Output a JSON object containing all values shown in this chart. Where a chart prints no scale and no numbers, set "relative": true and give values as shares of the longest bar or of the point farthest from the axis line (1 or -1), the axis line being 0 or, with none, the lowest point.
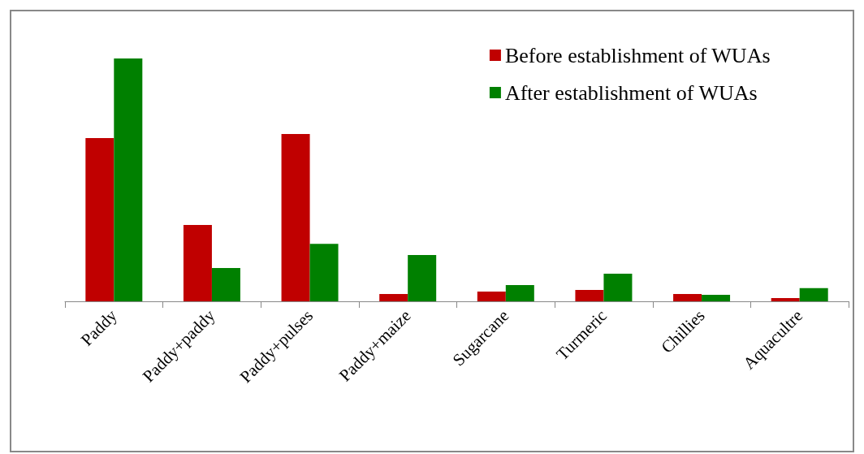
{
  "chart_data": {
    "type": "bar",
    "relative": true,
    "categories": [
      "Paddy",
      "Paddy+paddy",
      "Paddy+pulses",
      "Paddy+maize",
      "Sugarcane",
      "Turmeric",
      "Chillies",
      "Aquacultre"
    ],
    "series": [
      {
        "name": "Before establishment of WUAs",
        "color": "#c00000",
        "values": [
          0.672,
          0.314,
          0.689,
          0.03,
          0.04,
          0.047,
          0.03,
          0.013
        ]
      },
      {
        "name": "After establishment of WUAs",
        "color": "#008000",
        "values": [
          1,
          0.137,
          0.237,
          0.191,
          0.067,
          0.114,
          0.027,
          0.054
        ]
      }
    ],
    "legend": "top right",
    "grid": false
  }
}
